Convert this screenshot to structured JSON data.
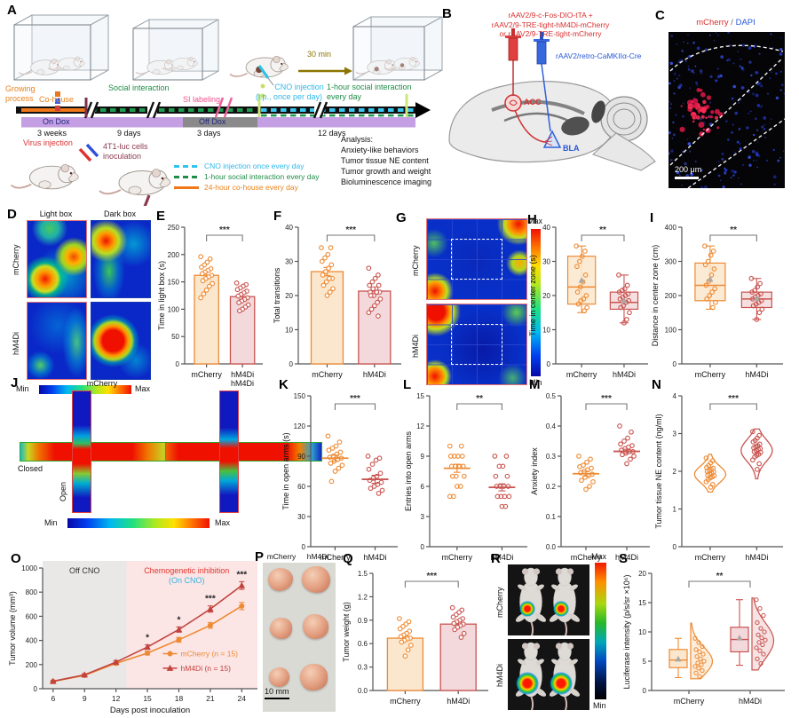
{
  "colors": {
    "mcherry_stroke": "#EE8A33",
    "mcherry_fill": "#FBE7CD",
    "hm4di_stroke": "#C95450",
    "hm4di_fill": "#F3D9DB",
    "hm4di_line": "#C2433E",
    "axis": "#555555",
    "sig_text": "#333333",
    "mean_marker": "#ABA7A3",
    "heat_base_blue": "#0A28C8",
    "accent_red": "#D93030",
    "accent_blue": "#2858D8",
    "cyan": "#2FB8E8",
    "green": "#1E8C46",
    "orange": "#F07818",
    "pink": "#EE5590",
    "purple_dox": "#C49FE3",
    "gray_offdox": "#8A8A8A",
    "olive": "#8B7500",
    "maroon": "#8C3A50",
    "region_gray": "#EAE8E7",
    "region_pink": "#FBE5E5",
    "oncno_cyan": "#38B6E0",
    "chemo_red": "#E0362C"
  },
  "panel_a": {
    "letter": "A",
    "timeline": {
      "growing_process": "Growing\nprocess",
      "co_house": "Co-house",
      "social_interaction": "Social interaction",
      "si_labeling": "SI labeling",
      "cno_injection": "CNO injection",
      "cno_route": "(i.p., once per day)",
      "social_1h": "1-hour social interaction",
      "social_1h2": "every day",
      "thirty_min": "30 min",
      "on_dox": "On Dox",
      "off_dox": "Off Dox",
      "dur_3_weeks": "3 weeks",
      "dur_9_days": "9 days",
      "dur_3_days": "3 days",
      "dur_12_days": "12 days",
      "virus_injection": "Virus injection",
      "t41": "4T1-luc cells\ninoculation"
    },
    "legend": [
      {
        "label": "CNO injection once every day"
      },
      {
        "label": "1-hour social interaction every day"
      },
      {
        "label": "24-hour co-house every day"
      }
    ],
    "analysis_title": "Analysis:",
    "analysis_items": [
      "Anxiety-like behaviors",
      "Tumor tissue NE content",
      "Tumor growth and weight",
      "Bioluminescence imaging"
    ]
  },
  "panel_b": {
    "letter": "B",
    "virus_line1": "rAAV2/9-c-Fos-DIO-tTA +",
    "virus_line2": "rAAV2/9-TRE-tight-hM4Di-mCherry",
    "virus_line3": "or  rAAV2/9-TRE-tight-mCherry",
    "virus_blue": "rAAV2/retro-CaMKIIα-Cre",
    "acc_label": "ACC",
    "bla_label": "BLA"
  },
  "panel_c": {
    "letter": "C",
    "title_mcherry": "mCherry",
    "title_sep": " / ",
    "title_dapi": "DAPI",
    "scale_label": "200 μm"
  },
  "panel_d": {
    "letter": "D",
    "col1": "Light box",
    "col2": "Dark box",
    "row1": "mCherry",
    "row2": "hM4Di",
    "min": "Min",
    "max": "Max"
  },
  "panel_g": {
    "letter": "G",
    "row1": "mCherry",
    "row2": "hM4Di",
    "min": "Min",
    "max": "Max"
  },
  "panel_j": {
    "letter": "J",
    "group1": "mCherry",
    "group2": "hM4Di",
    "closed": "Closed",
    "open": "Open",
    "min": "Min",
    "max": "Max"
  },
  "panel_p": {
    "letter": "P",
    "col1": "mCherry",
    "col2": "hM4Di",
    "scale_label": "10 mm"
  },
  "panel_r": {
    "letter": "R",
    "row1": "mCherry",
    "row2": "hM4Di",
    "max": "Max",
    "min": "Min"
  },
  "chart_data": [
    {
      "id": "E",
      "panel_letter": "E",
      "type": "bar",
      "ylabel": "Time in light box (s)",
      "ylim": [
        0,
        250
      ],
      "yticks": [
        0,
        50,
        100,
        150,
        200,
        250
      ],
      "categories": [
        "mCherry",
        "hM4Di"
      ],
      "groups": [
        "mcherry",
        "hm4di"
      ],
      "values": [
        162,
        123
      ],
      "sems": [
        6,
        5
      ],
      "sig": "***",
      "ml": 32,
      "points": [
        [
          196,
          192,
          186,
          181,
          177,
          174,
          171,
          168,
          165,
          162,
          159,
          156,
          152,
          147,
          142,
          135,
          128,
          121
        ],
        [
          148,
          145,
          142,
          139,
          136,
          133,
          130,
          127,
          124,
          121,
          118,
          115,
          112,
          108,
          104,
          100,
          97
        ]
      ]
    },
    {
      "id": "F",
      "panel_letter": "F",
      "type": "bar",
      "ylabel": "Total transitions",
      "ylim": [
        0,
        40
      ],
      "yticks": [
        0,
        10,
        20,
        30,
        40
      ],
      "categories": [
        "mCherry",
        "hM4Di"
      ],
      "groups": [
        "mcherry",
        "hm4di"
      ],
      "values": [
        27,
        21.3
      ],
      "sems": [
        1.2,
        0.9
      ],
      "sig": "***",
      "ml": 30,
      "points": [
        [
          34,
          34,
          32,
          31,
          30,
          29,
          28,
          27,
          26,
          25,
          25,
          24,
          23,
          22,
          21,
          20
        ],
        [
          28,
          26,
          25,
          24,
          23,
          23,
          22,
          22,
          21,
          21,
          21,
          20,
          20,
          19,
          18,
          17,
          16,
          15,
          14
        ]
      ]
    },
    {
      "id": "H",
      "panel_letter": "H",
      "type": "box",
      "ylabel": "Time in center zone (s)",
      "ylim": [
        0,
        40
      ],
      "yticks": [
        0,
        10,
        20,
        30,
        40
      ],
      "categories": [
        "mCherry",
        "hM4Di"
      ],
      "groups": [
        "mcherry",
        "hm4di"
      ],
      "sig": "**",
      "ml": 32,
      "boxes": [
        {
          "lo": 15,
          "q1": 17.5,
          "med": 22.5,
          "q3": 31.5,
          "hi": 34.5,
          "mean": 24.5
        },
        {
          "lo": 12,
          "q1": 16,
          "med": 18,
          "q3": 21,
          "hi": 26,
          "mean": 18.6
        }
      ],
      "points": [
        [
          34.5,
          33,
          31.5,
          30,
          28.5,
          26,
          24,
          22.5,
          21,
          20,
          19,
          18.5,
          17.5,
          16.5,
          15.5
        ],
        [
          26,
          23,
          22,
          21.5,
          21,
          20.5,
          20,
          19.5,
          19,
          18.5,
          18,
          17,
          16.5,
          15,
          13,
          12
        ]
      ]
    },
    {
      "id": "I",
      "panel_letter": "I",
      "type": "box",
      "ylabel": "Distance in center zone (cm)",
      "ylim": [
        0,
        400
      ],
      "yticks": [
        0,
        100,
        200,
        300,
        400
      ],
      "categories": [
        "mCherry",
        "hM4Di"
      ],
      "groups": [
        "mcherry",
        "hm4di"
      ],
      "sig": "**",
      "ml": 36,
      "boxes": [
        {
          "lo": 160,
          "q1": 185,
          "med": 230,
          "q3": 295,
          "hi": 345,
          "mean": 248
        },
        {
          "lo": 130,
          "q1": 165,
          "med": 190,
          "q3": 210,
          "hi": 250,
          "mean": 193
        }
      ],
      "points": [
        [
          345,
          330,
          318,
          300,
          290,
          278,
          260,
          242,
          230,
          220,
          210,
          200,
          190,
          180,
          165
        ],
        [
          250,
          235,
          225,
          215,
          210,
          205,
          200,
          196,
          190,
          185,
          180,
          175,
          170,
          160,
          150,
          130
        ]
      ]
    },
    {
      "id": "K",
      "panel_letter": "K",
      "type": "scatter",
      "ylabel": "Time in open arms (s)",
      "ylim": [
        0,
        150
      ],
      "yticks": [
        0,
        30,
        60,
        90,
        120,
        150
      ],
      "categories": [
        "mCherry",
        "hM4Di"
      ],
      "groups": [
        "mcherry",
        "hm4di"
      ],
      "means": [
        88,
        67
      ],
      "sems": [
        3,
        4
      ],
      "sig": "***",
      "ml": 34,
      "points": [
        [
          110,
          104,
          100,
          98,
          96,
          94,
          92,
          90,
          89,
          88,
          87,
          85,
          83,
          81,
          78,
          75,
          65
        ],
        [
          90,
          88,
          86,
          82,
          77,
          73,
          70,
          68,
          66,
          64,
          62,
          60,
          58,
          56,
          53
        ]
      ]
    },
    {
      "id": "L",
      "panel_letter": "L",
      "type": "scatter",
      "ylabel": "Entries into open arms",
      "ylim": [
        0,
        15
      ],
      "yticks": [
        0,
        3,
        6,
        9,
        12,
        15
      ],
      "categories": [
        "mCherry",
        "hM4Di"
      ],
      "groups": [
        "mcherry",
        "hm4di"
      ],
      "means": [
        7.8,
        5.9
      ],
      "sems": [
        0.4,
        0.35
      ],
      "sig": "**",
      "ml": 30,
      "points": [
        [
          10,
          10,
          9,
          9,
          9,
          9,
          8,
          8,
          8,
          8,
          8,
          7,
          7,
          7,
          6,
          6,
          5,
          5
        ],
        [
          9,
          9,
          8,
          8,
          7,
          7,
          6,
          6,
          6,
          6,
          5,
          5,
          5,
          5,
          4,
          4
        ]
      ]
    },
    {
      "id": "M",
      "panel_letter": "M",
      "type": "scatter",
      "ylabel": "Anxiety index",
      "ylim": [
        0,
        0.5
      ],
      "yticks": [
        0,
        0.1,
        0.2,
        0.3,
        0.4,
        0.5
      ],
      "ytick_labels": [
        "0.0",
        "0.1",
        "0.2",
        "0.3",
        "0.4",
        "0.5"
      ],
      "categories": [
        "mCherry",
        "hM4Di"
      ],
      "groups": [
        "mcherry",
        "hm4di"
      ],
      "means": [
        0.242,
        0.316
      ],
      "sems": [
        0.008,
        0.007
      ],
      "sig": "***",
      "ml": 36,
      "points": [
        [
          0.3,
          0.29,
          0.28,
          0.27,
          0.265,
          0.26,
          0.255,
          0.25,
          0.245,
          0.24,
          0.235,
          0.23,
          0.22,
          0.215,
          0.2,
          0.19
        ],
        [
          0.4,
          0.38,
          0.36,
          0.35,
          0.34,
          0.335,
          0.33,
          0.325,
          0.32,
          0.315,
          0.315,
          0.31,
          0.305,
          0.3,
          0.29,
          0.275
        ]
      ]
    },
    {
      "id": "N",
      "panel_letter": "N",
      "type": "violin",
      "ylabel": "Tumor tissue NE content (ng/ml)",
      "ylim": [
        0,
        4
      ],
      "yticks": [
        0,
        1,
        2,
        3,
        4
      ],
      "categories": [
        "mCherry",
        "hM4Di"
      ],
      "groups": [
        "mcherry",
        "hm4di"
      ],
      "centers": [
        1.92,
        2.55
      ],
      "spans": [
        [
          1.45,
          2.45
        ],
        [
          1.8,
          3.12
        ]
      ],
      "sig": "***",
      "ml": 32,
      "points": [
        [
          2.35,
          2.28,
          2.22,
          2.15,
          2.1,
          2.08,
          2.05,
          2.02,
          2.0,
          1.98,
          1.95,
          1.92,
          1.9,
          1.88,
          1.85,
          1.82,
          1.78,
          1.72,
          1.65,
          1.58
        ],
        [
          3.05,
          2.95,
          2.88,
          2.82,
          2.78,
          2.72,
          2.68,
          2.65,
          2.62,
          2.6,
          2.58,
          2.55,
          2.52,
          2.5,
          2.45,
          2.42,
          2.38,
          2.3,
          2.2,
          2.05
        ]
      ]
    },
    {
      "id": "O",
      "panel_letter": "O",
      "type": "line",
      "ylabel": "Tumor volume (mm³)",
      "xlabel": "Days post inoculation",
      "ylim": [
        0,
        1000
      ],
      "yticks": [
        0,
        200,
        400,
        600,
        800,
        1000
      ],
      "x": [
        6,
        9,
        12,
        15,
        18,
        21,
        24
      ],
      "series": [
        {
          "name": "mCherry (n = 15)",
          "group": "mcherry",
          "marker": "circle",
          "values": [
            60,
            110,
            210,
            295,
            405,
            525,
            685
          ],
          "errors": [
            6,
            10,
            14,
            16,
            20,
            24,
            30
          ]
        },
        {
          "name": "hM4Di (n = 15)",
          "group": "hm4di_line",
          "marker": "triangle",
          "values": [
            62,
            115,
            220,
            345,
            490,
            660,
            855
          ],
          "errors": [
            6,
            10,
            14,
            18,
            22,
            26,
            32
          ]
        }
      ],
      "regions": [
        {
          "label": "Off CNO",
          "from": 5,
          "to": 13,
          "color": "#EAE8E7",
          "label_color": "#333333"
        },
        {
          "label": "Chemogenetic inhibition",
          "label2": "(On CNO)",
          "from": 13,
          "to": 25.5,
          "color": "#FBE5E5",
          "label_color": "#E0362C",
          "label2_color": "#38B6E0"
        }
      ],
      "sigs": [
        {
          "x": 15,
          "label": "*"
        },
        {
          "x": 18,
          "label": "*"
        },
        {
          "x": 21,
          "label": "***"
        },
        {
          "x": 24,
          "label": "***"
        }
      ],
      "ml": 40
    },
    {
      "id": "Q",
      "panel_letter": "Q",
      "type": "bar",
      "ylabel": "Tumor weight (g)",
      "ylim": [
        0,
        1.5
      ],
      "yticks": [
        0,
        0.3,
        0.6,
        0.9,
        1.2,
        1.5
      ],
      "ytick_labels": [
        "0.0",
        "0.3",
        "0.6",
        "0.9",
        "1.2",
        "1.5"
      ],
      "categories": [
        "mCherry",
        "hM4Di"
      ],
      "groups": [
        "mcherry",
        "hm4di"
      ],
      "values": [
        0.67,
        0.85
      ],
      "sems": [
        0.03,
        0.025
      ],
      "sig": "***",
      "ml": 36,
      "points": [
        [
          0.92,
          0.88,
          0.85,
          0.82,
          0.79,
          0.76,
          0.73,
          0.71,
          0.69,
          0.67,
          0.66,
          0.64,
          0.62,
          0.58,
          0.52,
          0.44
        ],
        [
          1.06,
          1.03,
          1.0,
          0.97,
          0.94,
          0.92,
          0.9,
          0.88,
          0.86,
          0.85,
          0.83,
          0.81,
          0.78,
          0.73,
          0.68
        ]
      ]
    },
    {
      "id": "S",
      "panel_letter": "S",
      "type": "boxviolin",
      "ylabel": "Luciferase intensity (p/s/sr ×10⁶)",
      "ylim": [
        0,
        20
      ],
      "yticks": [
        0,
        5,
        10,
        15,
        20
      ],
      "categories": [
        "mCherry",
        "hM4Di"
      ],
      "groups": [
        "mcherry",
        "hm4di"
      ],
      "sig": "**",
      "ml": 34,
      "boxes": [
        {
          "lo": 2.2,
          "q1": 3.9,
          "med": 5.2,
          "q3": 7.0,
          "hi": 8.9,
          "mean": 5.4
        },
        {
          "lo": 4.3,
          "q1": 6.6,
          "med": 8.7,
          "q3": 10.8,
          "hi": 15.5,
          "mean": 9.0
        }
      ],
      "centers": [
        5.0,
        8.5
      ],
      "spans": [
        [
          2.0,
          11.5
        ],
        [
          3.5,
          15.8
        ]
      ],
      "points": [
        [
          8.9,
          8.2,
          7.5,
          7.0,
          6.6,
          6.2,
          5.8,
          5.4,
          5.0,
          4.7,
          4.4,
          4.1,
          3.8,
          3.4,
          3.0,
          2.4
        ],
        [
          15.5,
          14.0,
          12.8,
          11.6,
          10.6,
          10.0,
          9.5,
          9.0,
          8.6,
          8.2,
          7.8,
          7.3,
          6.8,
          6.2,
          5.4,
          4.6
        ]
      ]
    }
  ]
}
